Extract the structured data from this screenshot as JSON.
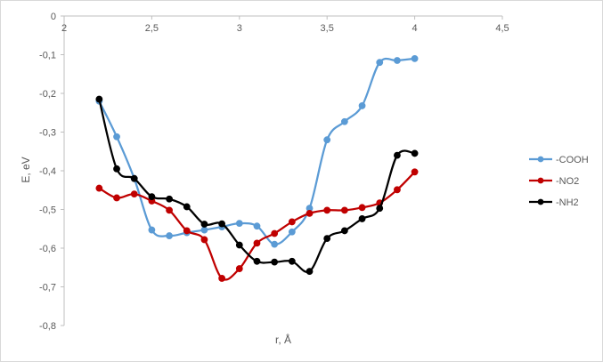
{
  "chart_data": {
    "type": "scatter",
    "xlabel": "r, Å",
    "ylabel": "E, eV",
    "xlim": [
      2,
      4.5
    ],
    "ylim": [
      -0.8,
      0
    ],
    "x_ticks": [
      2,
      2.5,
      3,
      3.5,
      4,
      4.5
    ],
    "x_tick_labels": [
      "2",
      "2,5",
      "3",
      "3,5",
      "4",
      "4,5"
    ],
    "y_ticks": [
      0,
      -0.1,
      -0.2,
      -0.3,
      -0.4,
      -0.5,
      -0.6,
      -0.7,
      -0.8
    ],
    "y_tick_labels": [
      "0",
      "-0,1",
      "-0,2",
      "-0,3",
      "-0,4",
      "-0,5",
      "-0,6",
      "-0,7",
      "-0,8"
    ],
    "x_axis_position": "top",
    "grid": false,
    "legend_position": "right",
    "smooth": true,
    "series": [
      {
        "name": "-COOH",
        "color": "#5b9bd5",
        "x": [
          2.2,
          2.3,
          2.4,
          2.5,
          2.6,
          2.7,
          2.8,
          2.9,
          3.0,
          3.1,
          3.2,
          3.3,
          3.4,
          3.5,
          3.6,
          3.7,
          3.8,
          3.9,
          4.0
        ],
        "y": [
          -0.22,
          -0.312,
          -0.42,
          -0.553,
          -0.568,
          -0.56,
          -0.553,
          -0.545,
          -0.536,
          -0.543,
          -0.59,
          -0.558,
          -0.497,
          -0.32,
          -0.273,
          -0.232,
          -0.12,
          -0.115,
          -0.11
        ]
      },
      {
        "name": "-NO2",
        "color": "#c00000",
        "x": [
          2.2,
          2.3,
          2.4,
          2.5,
          2.6,
          2.7,
          2.8,
          2.9,
          3.0,
          3.1,
          3.2,
          3.3,
          3.4,
          3.5,
          3.6,
          3.7,
          3.8,
          3.9,
          4.0
        ],
        "y": [
          -0.445,
          -0.47,
          -0.46,
          -0.478,
          -0.502,
          -0.555,
          -0.578,
          -0.678,
          -0.653,
          -0.587,
          -0.562,
          -0.532,
          -0.51,
          -0.502,
          -0.502,
          -0.495,
          -0.483,
          -0.449,
          -0.403
        ]
      },
      {
        "name": "-NH2",
        "color": "#000000",
        "x": [
          2.2,
          2.3,
          2.4,
          2.5,
          2.6,
          2.7,
          2.8,
          2.9,
          3.0,
          3.1,
          3.2,
          3.3,
          3.4,
          3.5,
          3.6,
          3.7,
          3.8,
          3.9,
          4.0
        ],
        "y": [
          -0.215,
          -0.395,
          -0.42,
          -0.467,
          -0.473,
          -0.493,
          -0.538,
          -0.537,
          -0.592,
          -0.634,
          -0.636,
          -0.634,
          -0.66,
          -0.575,
          -0.555,
          -0.524,
          -0.497,
          -0.36,
          -0.355
        ]
      }
    ]
  }
}
